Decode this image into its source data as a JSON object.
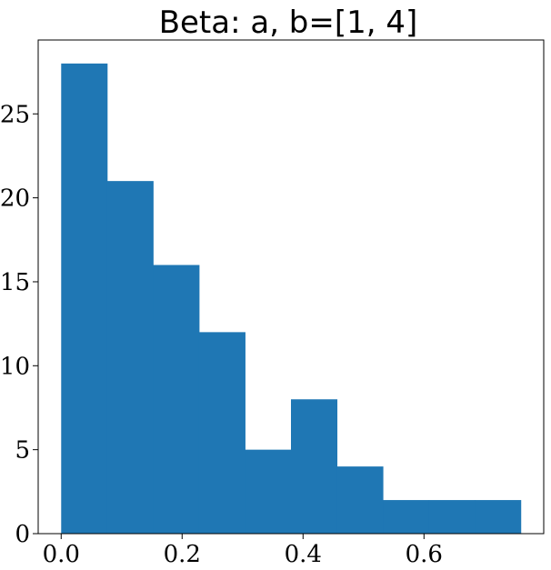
{
  "chart_data": {
    "type": "bar",
    "title": "Beta: a, b=[1, 4]",
    "xlabel": "",
    "ylabel": "",
    "bins": [
      {
        "x0": 0.0,
        "x1": 0.076,
        "count": 28
      },
      {
        "x0": 0.076,
        "x1": 0.152,
        "count": 21
      },
      {
        "x0": 0.152,
        "x1": 0.228,
        "count": 16
      },
      {
        "x0": 0.228,
        "x1": 0.304,
        "count": 12
      },
      {
        "x0": 0.304,
        "x1": 0.38,
        "count": 5
      },
      {
        "x0": 0.38,
        "x1": 0.456,
        "count": 8
      },
      {
        "x0": 0.456,
        "x1": 0.532,
        "count": 4
      },
      {
        "x0": 0.532,
        "x1": 0.608,
        "count": 2
      },
      {
        "x0": 0.608,
        "x1": 0.684,
        "count": 2
      },
      {
        "x0": 0.684,
        "x1": 0.76,
        "count": 2
      }
    ],
    "xlim": [
      -0.038,
      0.798
    ],
    "ylim": [
      0,
      29.4
    ],
    "xticks": [
      0.0,
      0.2,
      0.4,
      0.6
    ],
    "xtick_labels": [
      "0.0",
      "0.2",
      "0.4",
      "0.6"
    ],
    "yticks": [
      0,
      5,
      10,
      15,
      20,
      25
    ],
    "ytick_labels": [
      "0",
      "5",
      "10",
      "15",
      "20",
      "25"
    ],
    "bar_color": "#1f77b4",
    "grid": false,
    "legend": "none"
  }
}
